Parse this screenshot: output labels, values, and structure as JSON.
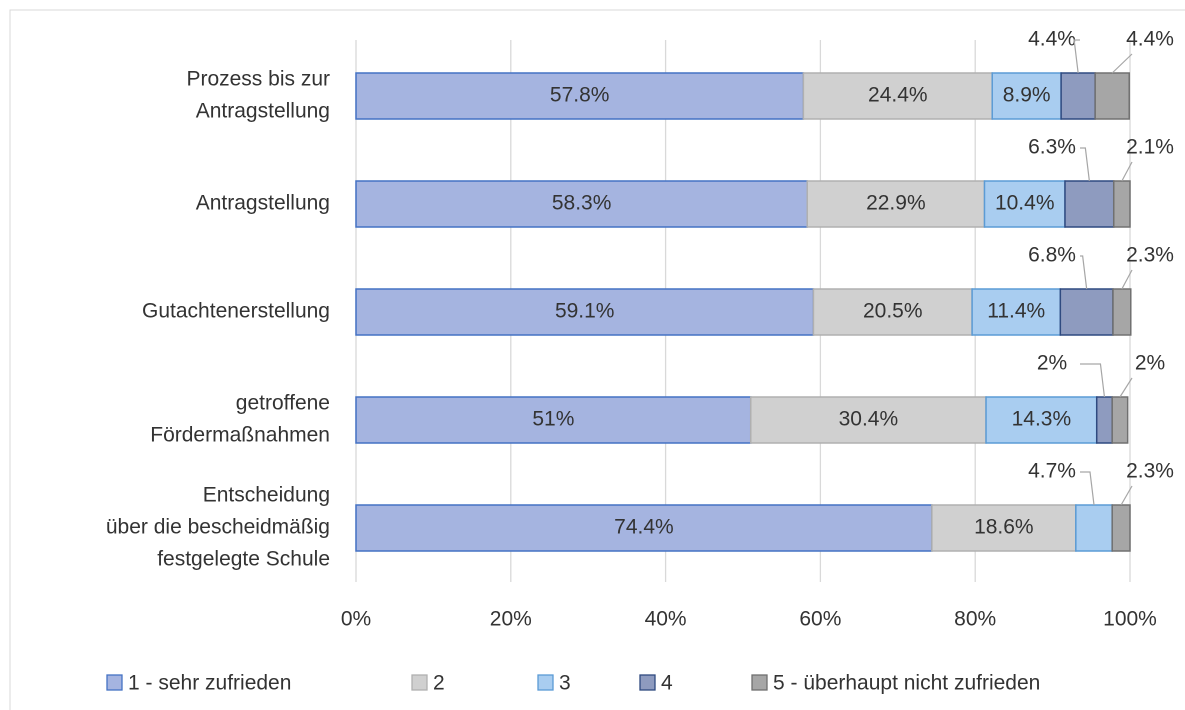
{
  "chart_data": {
    "type": "stacked-bar-horizontal",
    "categories": [
      [
        "Prozess bis zur",
        "Antragstellung"
      ],
      [
        "Antragstellung"
      ],
      [
        "Gutachtenerstellung"
      ],
      [
        "getroffene",
        "Fördermaßnahmen"
      ],
      [
        "Entscheidung",
        "über die bescheidmäßig",
        "festgelegte Schule"
      ]
    ],
    "series": [
      {
        "name": "1 - sehr zufrieden",
        "color": "#a5b4e0",
        "stroke": "#4472c4",
        "values": [
          57.8,
          58.3,
          59.1,
          51,
          74.4
        ],
        "value_labels": [
          "57.8%",
          "58.3%",
          "59.1%",
          "51%",
          "74.4%"
        ]
      },
      {
        "name": "2",
        "color": "#d0d0d0",
        "stroke": "#b0b0b0",
        "values": [
          24.4,
          22.9,
          20.5,
          30.4,
          18.6
        ],
        "value_labels": [
          "24.4%",
          "22.9%",
          "20.5%",
          "30.4%",
          "18.6%"
        ]
      },
      {
        "name": "3",
        "color": "#a9cdf0",
        "stroke": "#5b9bd5",
        "values": [
          8.9,
          10.4,
          11.4,
          14.3,
          4.7
        ],
        "value_labels": [
          "8.9%",
          "10.4%",
          "11.4%",
          "14.3%",
          "4.7%"
        ]
      },
      {
        "name": "4",
        "color": "#8e9bbf",
        "stroke": "#2f4a80",
        "values": [
          4.4,
          6.3,
          6.8,
          2,
          null
        ],
        "value_labels": [
          "4.4%",
          "6.3%",
          "6.8%",
          "2%",
          null
        ]
      },
      {
        "name": "5 - überhaupt nicht zufrieden",
        "color": "#a6a6a6",
        "stroke": "#707070",
        "values": [
          4.4,
          2.1,
          2.3,
          2,
          2.3
        ],
        "value_labels": [
          "4.4%",
          "2.1%",
          "2.3%",
          "2%",
          "2.3%"
        ]
      }
    ],
    "xlim": [
      0,
      100
    ],
    "xticks": [
      {
        "value": 0,
        "label": "0%"
      },
      {
        "value": 20,
        "label": "20%"
      },
      {
        "value": 40,
        "label": "40%"
      },
      {
        "value": 60,
        "label": "60%"
      },
      {
        "value": 80,
        "label": "80%"
      },
      {
        "value": 100,
        "label": "100%"
      }
    ],
    "grid": true,
    "legend": "bottom"
  }
}
